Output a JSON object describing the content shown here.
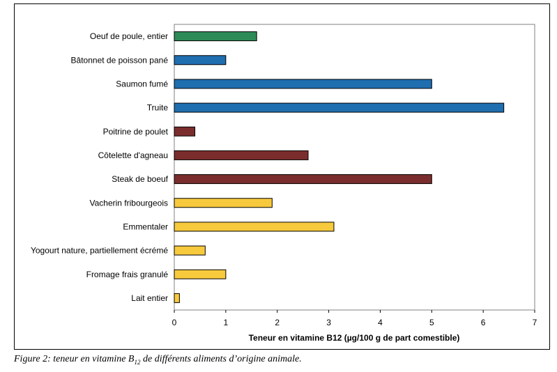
{
  "chart_data": {
    "type": "bar",
    "orientation": "horizontal",
    "categories": [
      "Oeuf de poule, entier",
      "Bâtonnet de poisson pané",
      "Saumon fumé",
      "Truite",
      "Poitrine de poulet",
      "Côtelette d'agneau",
      "Steak de boeuf",
      "Vacherin fribourgeois",
      "Emmentaler",
      "Yogourt nature, partiellement écrémé",
      "Fromage frais granulé",
      "Lait entier"
    ],
    "values": [
      1.6,
      1.0,
      5.0,
      6.4,
      0.4,
      2.6,
      5.0,
      1.9,
      3.1,
      0.6,
      1.0,
      0.1
    ],
    "bar_colors": [
      "#2e8b57",
      "#1f6eb0",
      "#1f6eb0",
      "#1f6eb0",
      "#7b2d2d",
      "#7b2d2d",
      "#7b2d2d",
      "#f7c93c",
      "#f7c93c",
      "#f7c93c",
      "#f7c93c",
      "#f7c93c"
    ],
    "xlim": [
      0,
      7
    ],
    "xticks": [
      "0",
      "1",
      "2",
      "3",
      "4",
      "5",
      "6",
      "7"
    ],
    "xlabel": "Teneur en vitamine B12 (µg/100 g de part comestible)",
    "ylabel": "",
    "grid": false
  },
  "caption": {
    "prefix": "Figure 2: teneur en vitamine B",
    "subscript": "12",
    "suffix": " de différents aliments d’origine animale."
  }
}
